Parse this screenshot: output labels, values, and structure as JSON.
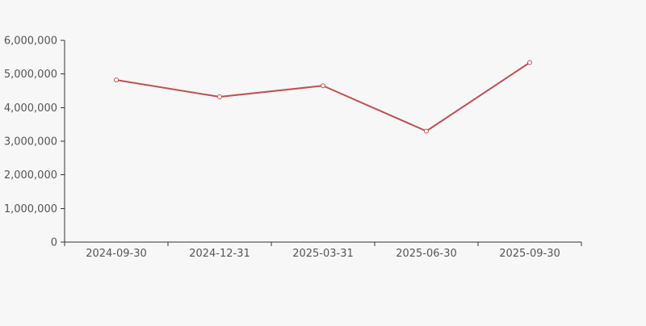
{
  "page": {
    "background_color": "#f7f7f7"
  },
  "chart_data": {
    "type": "line",
    "title": "",
    "xlabel": "",
    "ylabel": "",
    "categories": [
      "2024-09-30",
      "2024-12-31",
      "2025-03-31",
      "2025-06-30",
      "2025-09-30"
    ],
    "values": [
      4820000,
      4320000,
      4650000,
      3300000,
      5340000
    ],
    "ylim": [
      0,
      6000000
    ],
    "y_ticks": {
      "values": [
        0,
        1000000,
        2000000,
        3000000,
        4000000,
        5000000,
        6000000
      ],
      "labels": [
        "0",
        "1,000,000",
        "2,000,000",
        "3,000,000",
        "4,000,000",
        "5,000,000",
        "6,000,000"
      ]
    },
    "grid": false,
    "legend": "none",
    "style": {
      "line_color": "#c24f4f",
      "line_width": 2,
      "marker": "open-circle",
      "marker_radius": 2.5,
      "marker_fill": "#ffffff",
      "axis_color": "#333333",
      "tick_label_color": "#555555",
      "background_color": "#f7f7f7"
    }
  }
}
